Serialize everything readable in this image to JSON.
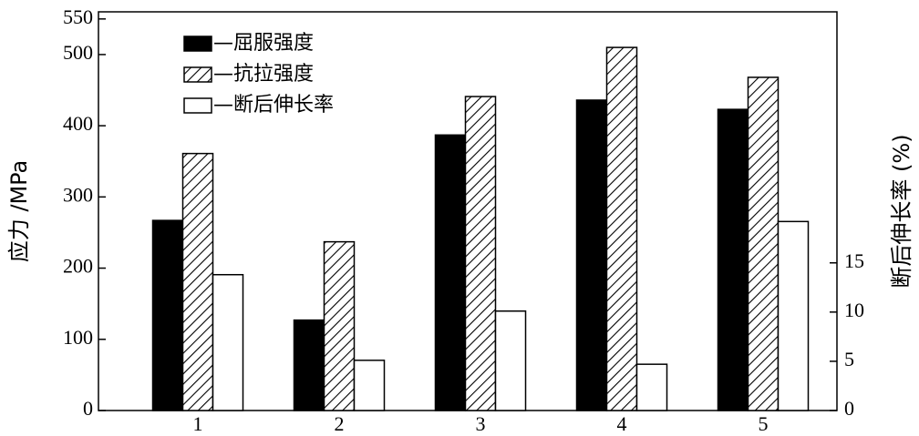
{
  "chart_data": {
    "type": "bar",
    "categories": [
      "1",
      "2",
      "3",
      "4",
      "5"
    ],
    "y_label": "应力 /MPa",
    "y2_label": "断后伸长率 (%)",
    "ylim": [
      0,
      560
    ],
    "yticks": [
      0,
      100,
      200,
      300,
      400,
      500,
      550
    ],
    "y2lim": [
      0,
      40.5
    ],
    "y2ticks": [
      0,
      5,
      10,
      15
    ],
    "series": [
      {
        "name": "—屈服强度",
        "color": "#000000",
        "pattern": "solid",
        "values": [
          267,
          127,
          387,
          436,
          423
        ]
      },
      {
        "name": "—抗拉强度",
        "color": "#000000",
        "pattern": "hatch",
        "values": [
          361,
          237,
          441,
          510,
          468
        ]
      },
      {
        "name": "—断后伸长率",
        "color": "#000000",
        "pattern": "empty",
        "axis": "y2",
        "values": [
          13.8,
          5.1,
          10.1,
          4.7,
          19.2
        ]
      }
    ]
  }
}
